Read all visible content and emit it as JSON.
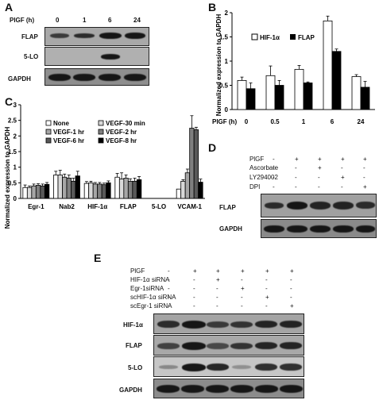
{
  "panels": {
    "a": "A",
    "b": "B",
    "c": "C",
    "d": "D",
    "e": "E"
  },
  "panelA": {
    "header": "PlGF (h)",
    "timepoints": [
      "0",
      "1",
      "6",
      "24"
    ],
    "rows": [
      "FLAP",
      "5-LO",
      "GAPDH"
    ]
  },
  "panelD": {
    "treatments": [
      "PlGF",
      "Ascorbate",
      "LY294002",
      "DPI"
    ],
    "signs": [
      [
        "-",
        "+",
        "+",
        "+",
        "+"
      ],
      [
        "-",
        "-",
        "+",
        "-",
        "-"
      ],
      [
        "-",
        "-",
        "-",
        "+",
        "-"
      ],
      [
        "-",
        "-",
        "-",
        "-",
        "+"
      ]
    ],
    "rows": [
      "FLAP",
      "GAPDH"
    ]
  },
  "panelE": {
    "treatments": [
      "PlGF",
      "HIF-1α siRNA",
      "Egr-1siRNA",
      "scHIF-1α siRNA",
      "scEgr-1 siRNA"
    ],
    "signs": [
      [
        "-",
        "+",
        "+",
        "+",
        "+",
        "+"
      ],
      [
        "-",
        "-",
        "+",
        "-",
        "-",
        "-"
      ],
      [
        "-",
        "-",
        "-",
        "+",
        "-",
        "-"
      ],
      [
        "-",
        "-",
        "-",
        "-",
        "+",
        "-"
      ],
      [
        "-",
        "-",
        "-",
        "-",
        "-",
        "+"
      ]
    ],
    "rows": [
      "HIF-1α",
      "FLAP",
      "5-LO",
      "GAPDH"
    ]
  },
  "chart_data": [
    {
      "panel": "B",
      "type": "bar",
      "categories": [
        "0",
        "0.5",
        "1",
        "6",
        "24"
      ],
      "xlabel": "PlGF (h)",
      "ylabel": "Normalized expression to GAPDH",
      "ylim": [
        0,
        2
      ],
      "yticks": [
        "0",
        "0.5",
        "1",
        "1.5",
        "2"
      ],
      "legend_position": "top-left",
      "series": [
        {
          "name": "HIF-1α",
          "color": "#ffffff",
          "values": [
            0.6,
            0.7,
            0.83,
            1.83,
            0.68
          ],
          "errors": [
            0.07,
            0.2,
            0.08,
            0.1,
            0.04
          ]
        },
        {
          "name": "FLAP",
          "color": "#000000",
          "values": [
            0.43,
            0.5,
            0.55,
            1.2,
            0.46
          ],
          "errors": [
            0.12,
            0.1,
            0.02,
            0.05,
            0.12
          ]
        }
      ]
    },
    {
      "panel": "C",
      "type": "bar",
      "categories": [
        "Egr-1",
        "Nab2",
        "HIF-1α",
        "FLAP",
        "5-LO",
        "VCAM-1"
      ],
      "ylabel": "Normalized expression to GAPDH",
      "ylim": [
        0,
        3
      ],
      "yticks": [
        "0",
        "0.5",
        "1",
        "1.5",
        "2",
        "2.5",
        "3"
      ],
      "legend_position": "top",
      "series": [
        {
          "name": "None",
          "color": "#ffffff",
          "values": [
            0.35,
            0.75,
            0.48,
            0.68,
            0,
            0.3
          ],
          "errors": [
            0.08,
            0.12,
            0.06,
            0.12,
            0,
            0
          ]
        },
        {
          "name": "VEGF-30 min",
          "color": "#d9d9d9",
          "values": [
            0.35,
            0.75,
            0.5,
            0.62,
            0,
            0.55
          ],
          "errors": [
            0.05,
            0.15,
            0.05,
            0.2,
            0,
            0.05
          ]
        },
        {
          "name": "VEGF-1 hr",
          "color": "#a6a6a6",
          "values": [
            0.4,
            0.68,
            0.46,
            0.65,
            0,
            0.82
          ],
          "errors": [
            0.06,
            0.1,
            0.05,
            0.1,
            0,
            0.12
          ]
        },
        {
          "name": "VEGF-2 hr",
          "color": "#7f7f7f",
          "values": [
            0.42,
            0.65,
            0.46,
            0.55,
            0,
            2.25
          ],
          "errors": [
            0.05,
            0.1,
            0.05,
            0.08,
            0,
            0.4
          ]
        },
        {
          "name": "VEGF-6 hr",
          "color": "#595959",
          "values": [
            0.4,
            0.55,
            0.44,
            0.55,
            0,
            2.2
          ],
          "errors": [
            0.06,
            0.1,
            0.05,
            0.1,
            0,
            0.08
          ]
        },
        {
          "name": "VEGF-8 hr",
          "color": "#000000",
          "values": [
            0.45,
            0.72,
            0.5,
            0.6,
            0,
            0.52
          ],
          "errors": [
            0.06,
            0.15,
            0.06,
            0.1,
            0,
            0.1
          ]
        }
      ]
    }
  ]
}
